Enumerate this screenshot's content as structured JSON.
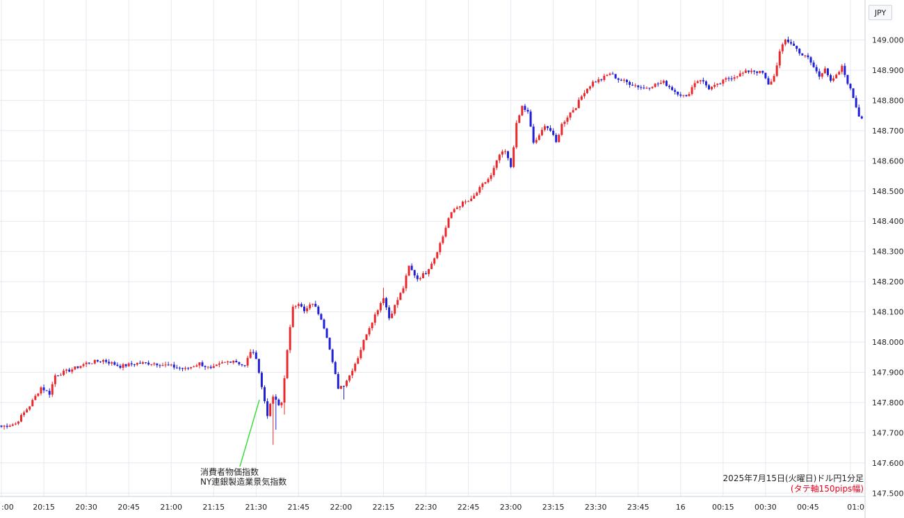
{
  "currency_badge": "JPY",
  "annotation": {
    "line1": "消費者物価指数",
    "line2": "NY連銀製造業景気指数"
  },
  "caption": {
    "line1": "2025年7月15日(火曜日)ドル円1分足",
    "line2": "(タテ軸150pips幅)",
    "line2_color": "#e8001c"
  },
  "colors": {
    "up": "#e8282b",
    "down": "#1f1fd8",
    "grid": "#e4eaf0",
    "annotation_line": "#3ddc3d"
  },
  "chart_data": {
    "type": "candlestick",
    "ylim": [
      147.5,
      149.05
    ],
    "y_ticks": [
      "147.500",
      "147.600",
      "147.700",
      "147.800",
      "147.900",
      "148.000",
      "148.100",
      "148.200",
      "148.300",
      "148.400",
      "148.500",
      "148.600",
      "148.700",
      "148.800",
      "148.900",
      "149.000"
    ],
    "x_ticks": [
      ":00",
      "20:15",
      "20:30",
      "20:45",
      "21:00",
      "21:15",
      "21:30",
      "21:45",
      "22:00",
      "22:15",
      "22:30",
      "22:45",
      "23:00",
      "23:15",
      "23:30",
      "23:45",
      "16",
      "00:15",
      "00:30",
      "00:45",
      "01:0"
    ],
    "close_path": [
      [
        0,
        147.72
      ],
      [
        5,
        147.73
      ],
      [
        10,
        147.79
      ],
      [
        14,
        147.85
      ],
      [
        17,
        147.83
      ],
      [
        19,
        147.89
      ],
      [
        25,
        147.91
      ],
      [
        30,
        147.93
      ],
      [
        36,
        147.94
      ],
      [
        42,
        147.92
      ],
      [
        48,
        147.93
      ],
      [
        54,
        147.93
      ],
      [
        60,
        147.92
      ],
      [
        65,
        147.91
      ],
      [
        70,
        147.93
      ],
      [
        74,
        147.91
      ],
      [
        78,
        147.93
      ],
      [
        82,
        147.94
      ],
      [
        86,
        147.92
      ],
      [
        88,
        147.97
      ],
      [
        90,
        147.95
      ],
      [
        92,
        147.85
      ],
      [
        94,
        147.76
      ],
      [
        96,
        147.82
      ],
      [
        98,
        147.79
      ],
      [
        99,
        147.8
      ],
      [
        101,
        147.97
      ],
      [
        103,
        148.12
      ],
      [
        105,
        148.13
      ],
      [
        107,
        148.1
      ],
      [
        110,
        148.13
      ],
      [
        113,
        148.08
      ],
      [
        115,
        148.02
      ],
      [
        117,
        147.93
      ],
      [
        119,
        147.85
      ],
      [
        121,
        147.86
      ],
      [
        123,
        147.89
      ],
      [
        126,
        147.95
      ],
      [
        129,
        148.03
      ],
      [
        132,
        148.09
      ],
      [
        135,
        148.15
      ],
      [
        137,
        148.08
      ],
      [
        139,
        148.12
      ],
      [
        142,
        148.18
      ],
      [
        144,
        148.25
      ],
      [
        147,
        148.21
      ],
      [
        150,
        148.23
      ],
      [
        153,
        148.28
      ],
      [
        156,
        148.35
      ],
      [
        158,
        148.41
      ],
      [
        160,
        148.44
      ],
      [
        163,
        148.46
      ],
      [
        166,
        148.47
      ],
      [
        170,
        148.52
      ],
      [
        173,
        148.55
      ],
      [
        176,
        148.62
      ],
      [
        178,
        148.63
      ],
      [
        180,
        148.58
      ],
      [
        182,
        148.72
      ],
      [
        184,
        148.78
      ],
      [
        186,
        148.76
      ],
      [
        188,
        148.66
      ],
      [
        190,
        148.68
      ],
      [
        192,
        148.72
      ],
      [
        194,
        148.7
      ],
      [
        196,
        148.66
      ],
      [
        198,
        148.72
      ],
      [
        201,
        148.76
      ],
      [
        203,
        148.78
      ],
      [
        206,
        148.83
      ],
      [
        209,
        148.86
      ],
      [
        212,
        148.87
      ],
      [
        215,
        148.89
      ],
      [
        218,
        148.87
      ],
      [
        221,
        148.86
      ],
      [
        224,
        148.85
      ],
      [
        227,
        148.84
      ],
      [
        230,
        148.85
      ],
      [
        234,
        148.86
      ],
      [
        238,
        148.83
      ],
      [
        242,
        148.81
      ],
      [
        245,
        148.86
      ],
      [
        247,
        148.87
      ],
      [
        250,
        148.84
      ],
      [
        253,
        148.85
      ],
      [
        256,
        148.87
      ],
      [
        259,
        148.88
      ],
      [
        262,
        148.89
      ],
      [
        265,
        148.9
      ],
      [
        269,
        148.89
      ],
      [
        271,
        148.85
      ],
      [
        273,
        148.88
      ],
      [
        275,
        148.96
      ],
      [
        277,
        149.0
      ],
      [
        279,
        148.99
      ],
      [
        281,
        148.97
      ],
      [
        283,
        148.95
      ],
      [
        285,
        148.94
      ],
      [
        287,
        148.91
      ],
      [
        289,
        148.88
      ],
      [
        291,
        148.91
      ],
      [
        293,
        148.86
      ],
      [
        295,
        148.88
      ],
      [
        297,
        148.91
      ],
      [
        299,
        148.86
      ],
      [
        301,
        148.81
      ],
      [
        303,
        148.75
      ],
      [
        304,
        148.74
      ]
    ],
    "wick_spikes": [
      [
        96,
        147.66
      ],
      [
        97,
        147.71
      ],
      [
        100,
        147.76
      ],
      [
        121,
        147.81
      ],
      [
        135,
        148.18
      ]
    ]
  }
}
